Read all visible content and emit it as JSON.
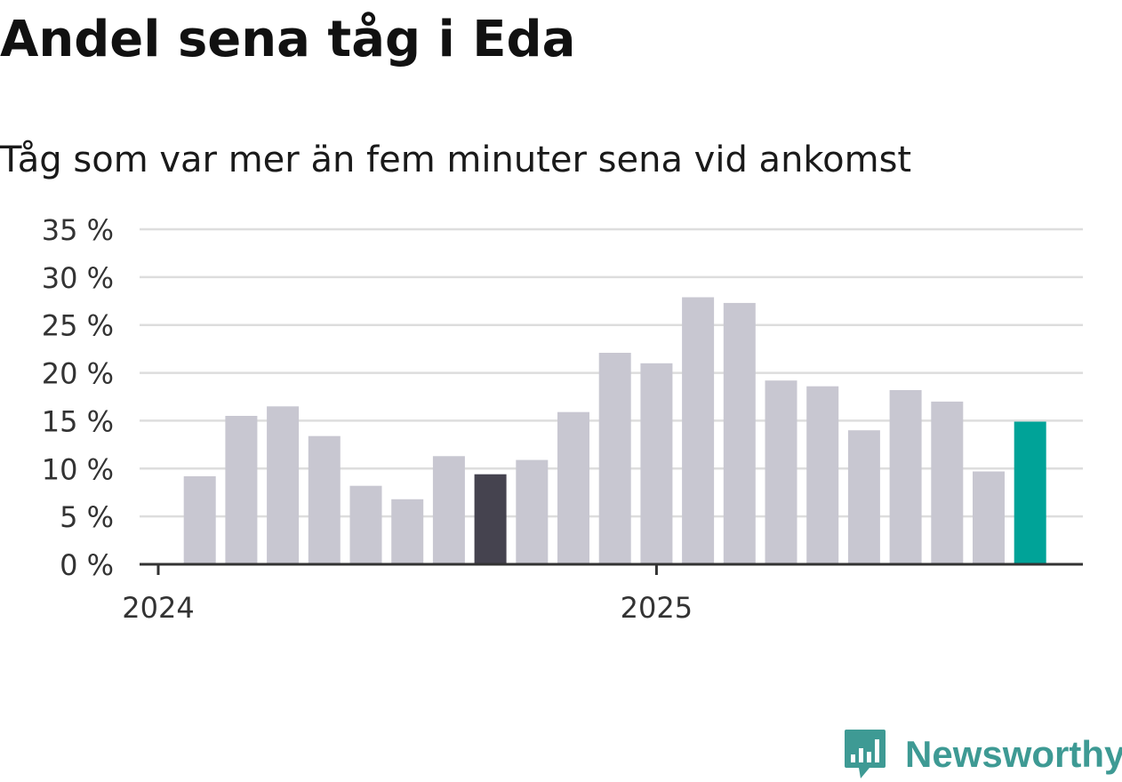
{
  "title": "Andel sena tåg i Eda",
  "subtitle": "Tåg som var mer än fem minuter sena vid ankomst",
  "brand": {
    "name": "Newsworthy",
    "icon": "newsworthy-logo-icon",
    "color": "#3e9a94"
  },
  "colors": {
    "bar_default": "#c8c7d1",
    "bar_highlight_dark": "#45434f",
    "bar_highlight_latest": "#00a398",
    "grid": "#dddddd",
    "axis": "#333333",
    "tick_text": "#333333"
  },
  "chart_data": {
    "type": "bar",
    "title": "",
    "xlabel": "",
    "ylabel": "",
    "y_unit": "%",
    "ylim": [
      0,
      35
    ],
    "y_ticks": [
      0,
      5,
      10,
      15,
      20,
      25,
      30,
      35
    ],
    "y_tick_labels": [
      "0 %",
      "5 %",
      "10 %",
      "15 %",
      "20 %",
      "25 %",
      "30 %",
      "35 %"
    ],
    "grid": true,
    "x_tick_labels": [
      {
        "label": "2024",
        "at_category": "2024-01"
      },
      {
        "label": "2025",
        "at_category": "2025-01"
      }
    ],
    "categories": [
      "2024-01",
      "2024-02",
      "2024-03",
      "2024-04",
      "2024-05",
      "2024-06",
      "2024-07",
      "2024-08",
      "2024-09",
      "2024-10",
      "2024-11",
      "2024-12",
      "2025-01",
      "2025-02",
      "2025-03",
      "2025-04",
      "2025-05",
      "2025-06",
      "2025-07",
      "2025-08",
      "2025-09",
      "2025-10"
    ],
    "values": [
      null,
      9.2,
      15.5,
      16.5,
      13.4,
      8.2,
      6.8,
      11.3,
      9.4,
      10.9,
      15.9,
      22.1,
      21.0,
      27.9,
      27.3,
      19.2,
      18.6,
      14.0,
      18.2,
      17.0,
      9.7,
      14.9
    ],
    "highlights": [
      {
        "category": "2024-09",
        "color": "#45434f"
      },
      {
        "category": "2025-10",
        "color": "#00a398"
      }
    ]
  }
}
